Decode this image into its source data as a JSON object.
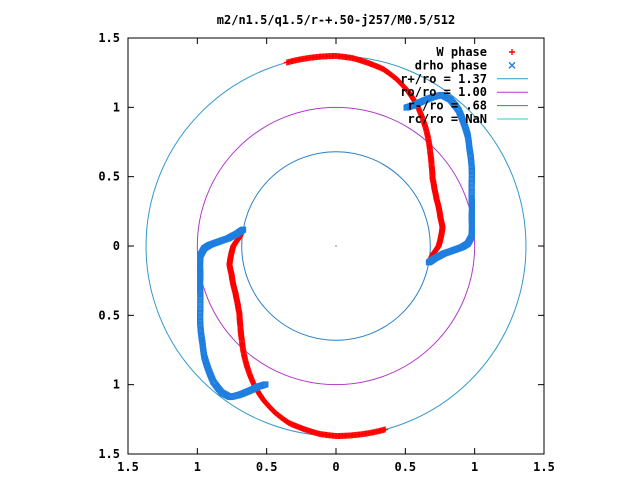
{
  "chart_data": {
    "type": "scatter",
    "title": "m2/n1.5/q1.5/r-+.50-j257/M0.5/512",
    "xlabel": "",
    "ylabel": "",
    "xlim": [
      -1.5,
      1.5
    ],
    "ylim": [
      -1.5,
      1.5
    ],
    "x_tick_labels": [
      "1.5",
      "1",
      "0.5",
      "0",
      "0.5",
      "1",
      "1.5"
    ],
    "y_tick_labels": [
      "1.5",
      "1",
      "0.5",
      "0",
      "0.5",
      "1",
      "1.5"
    ],
    "tick_values": [
      -1.5,
      -1,
      -0.5,
      0,
      0.5,
      1,
      1.5
    ],
    "grid": false,
    "legend_position": "top-right",
    "legend": [
      {
        "label": "W phase",
        "marker": "+",
        "color": "#ff0000"
      },
      {
        "label": "drho phase",
        "marker": "x",
        "color": "#1f7fe0"
      },
      {
        "label": "r+/ro = 1.37",
        "marker": "line",
        "color": "#3399cc"
      },
      {
        "label": "ro/ro = 1.00",
        "marker": "line",
        "color": "#b039c8"
      },
      {
        "label": "r-/ro = .68",
        "marker": "line",
        "color": "#2a7fc4"
      },
      {
        "label": "rc/ro = NaN",
        "marker": "line",
        "color": "#33cccc"
      }
    ],
    "circles": [
      {
        "name": "r+/ro = 1.37",
        "radius": 1.37,
        "color": "#3399cc"
      },
      {
        "name": "ro/ro = 1.00",
        "radius": 1.0,
        "color": "#b039c8"
      },
      {
        "name": "r-/ro = .68",
        "radius": 0.68,
        "color": "#2a7fc4"
      }
    ],
    "series": [
      {
        "name": "W phase",
        "color": "#ff0000",
        "arm_points": [
          [
            0.68,
            -10
          ],
          [
            0.7,
            -5
          ],
          [
            0.74,
            0
          ],
          [
            0.76,
            5
          ],
          [
            0.78,
            10
          ],
          [
            0.78,
            15
          ],
          [
            0.79,
            20
          ],
          [
            0.8,
            25
          ],
          [
            0.82,
            30
          ],
          [
            0.85,
            35
          ],
          [
            0.9,
            40
          ],
          [
            0.96,
            45
          ],
          [
            1.03,
            50
          ],
          [
            1.1,
            55
          ],
          [
            1.17,
            60
          ],
          [
            1.23,
            65
          ],
          [
            1.28,
            70
          ],
          [
            1.32,
            75
          ],
          [
            1.34,
            80
          ],
          [
            1.36,
            85
          ],
          [
            1.37,
            90
          ],
          [
            1.37,
            95
          ],
          [
            1.37,
            100
          ],
          [
            1.37,
            105
          ]
        ]
      },
      {
        "name": "drho phase",
        "color": "#1f7fe0",
        "arm_points": [
          [
            0.68,
            -10
          ],
          [
            0.72,
            -7
          ],
          [
            0.78,
            -4
          ],
          [
            0.85,
            -2
          ],
          [
            0.91,
            -0.5
          ],
          [
            0.95,
            1
          ],
          [
            0.98,
            4
          ],
          [
            0.99,
            8
          ],
          [
            1.0,
            12
          ],
          [
            1.02,
            16
          ],
          [
            1.04,
            20
          ],
          [
            1.07,
            24
          ],
          [
            1.11,
            28
          ],
          [
            1.15,
            32
          ],
          [
            1.19,
            36
          ],
          [
            1.24,
            40
          ],
          [
            1.28,
            44
          ],
          [
            1.32,
            48
          ],
          [
            1.34,
            52
          ],
          [
            1.33,
            55
          ],
          [
            1.28,
            57
          ],
          [
            1.22,
            59
          ],
          [
            1.16,
            61
          ],
          [
            1.12,
            63
          ]
        ]
      }
    ]
  }
}
